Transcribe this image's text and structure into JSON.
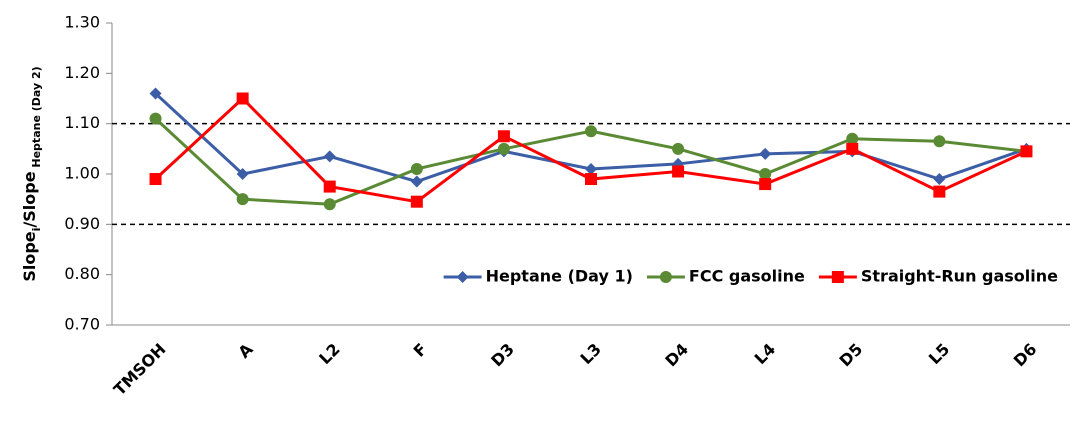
{
  "chart_data": {
    "type": "line",
    "ylabel": [
      {
        "text": "Slope"
      },
      {
        "text": "i",
        "sub": true
      },
      {
        "text": "/Slope"
      },
      {
        "text": " Heptane (Day 2)",
        "sub": true
      }
    ],
    "categories": [
      "TMSOH",
      "A",
      "L2",
      "F",
      "D3",
      "L3",
      "D4",
      "L4",
      "D5",
      "L5",
      "D6"
    ],
    "series": [
      {
        "name": "Heptane (Day 1)",
        "color": "#3b5ea6",
        "marker": "diamond",
        "values": [
          1.16,
          1.0,
          1.035,
          0.985,
          1.045,
          1.01,
          1.02,
          1.04,
          1.045,
          0.99,
          1.05
        ]
      },
      {
        "name": "FCC gasoline",
        "color": "#5a8a34",
        "marker": "circle",
        "values": [
          1.11,
          0.95,
          0.94,
          1.01,
          1.05,
          1.085,
          1.05,
          1.0,
          1.07,
          1.065,
          1.045
        ]
      },
      {
        "name": "Straight-Run gasoline",
        "color": "#ff0000",
        "marker": "square",
        "values": [
          0.99,
          1.15,
          0.975,
          0.945,
          1.075,
          0.99,
          1.005,
          0.98,
          1.05,
          0.965,
          1.045
        ]
      }
    ],
    "reference_lines": [
      1.1,
      0.9
    ],
    "ylim": [
      0.7,
      1.3
    ],
    "yticks": [
      {
        "value": 0.7,
        "label": "0.70"
      },
      {
        "value": 0.8,
        "label": "0.80"
      },
      {
        "value": 0.9,
        "label": "0.90"
      },
      {
        "value": 1.0,
        "label": "1.00"
      },
      {
        "value": 1.1,
        "label": "1.10"
      },
      {
        "value": 1.2,
        "label": "1.20"
      },
      {
        "value": 1.3,
        "label": "1.30"
      }
    ],
    "grid": false,
    "legend": "bottom-right"
  }
}
